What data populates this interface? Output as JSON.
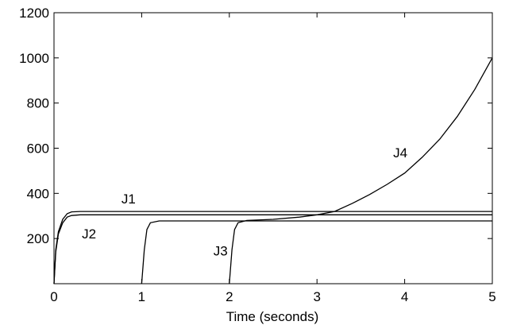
{
  "chart_data": {
    "type": "line",
    "title": "",
    "xlabel": "Time (seconds)",
    "ylabel": "",
    "xlim": [
      0,
      5
    ],
    "ylim": [
      0,
      1200
    ],
    "x_ticks": [
      0,
      1,
      2,
      3,
      4,
      5
    ],
    "y_ticks": [
      200,
      400,
      600,
      800,
      1000,
      1200
    ],
    "grid": false,
    "legend": "none",
    "series": [
      {
        "name": "J1",
        "x": [
          0,
          0.02,
          0.05,
          0.1,
          0.15,
          0.2,
          0.3,
          0.5,
          1,
          2,
          3,
          4,
          5
        ],
        "y": [
          0,
          150,
          230,
          285,
          310,
          318,
          320,
          320,
          320,
          320,
          320,
          320,
          320
        ]
      },
      {
        "name": "J2",
        "x": [
          0,
          0.02,
          0.05,
          0.1,
          0.15,
          0.2,
          0.3,
          0.5,
          1,
          2,
          3,
          4,
          5
        ],
        "y": [
          0,
          140,
          220,
          270,
          295,
          302,
          305,
          305,
          305,
          305,
          305,
          305,
          305
        ]
      },
      {
        "name": "J3",
        "x": [
          1.0,
          1.03,
          1.06,
          1.1,
          1.2,
          2,
          3,
          4,
          5
        ],
        "y": [
          0,
          150,
          240,
          270,
          278,
          278,
          278,
          278,
          278
        ]
      },
      {
        "name": "J4",
        "x": [
          2.0,
          2.03,
          2.06,
          2.1,
          2.2,
          2.5,
          2.8,
          3.0,
          3.2,
          3.4,
          3.6,
          3.8,
          4.0,
          4.2,
          4.4,
          4.6,
          4.8,
          5.0
        ],
        "y": [
          0,
          150,
          240,
          270,
          280,
          285,
          295,
          305,
          320,
          355,
          395,
          440,
          490,
          560,
          640,
          740,
          860,
          1000
        ]
      }
    ],
    "annotations": [
      {
        "text": "J1",
        "x": 0.85,
        "y": 355
      },
      {
        "text": "J2",
        "x": 0.4,
        "y": 200
      },
      {
        "text": "J3",
        "x": 1.9,
        "y": 125
      },
      {
        "text": "J4",
        "x": 3.95,
        "y": 560
      }
    ]
  }
}
